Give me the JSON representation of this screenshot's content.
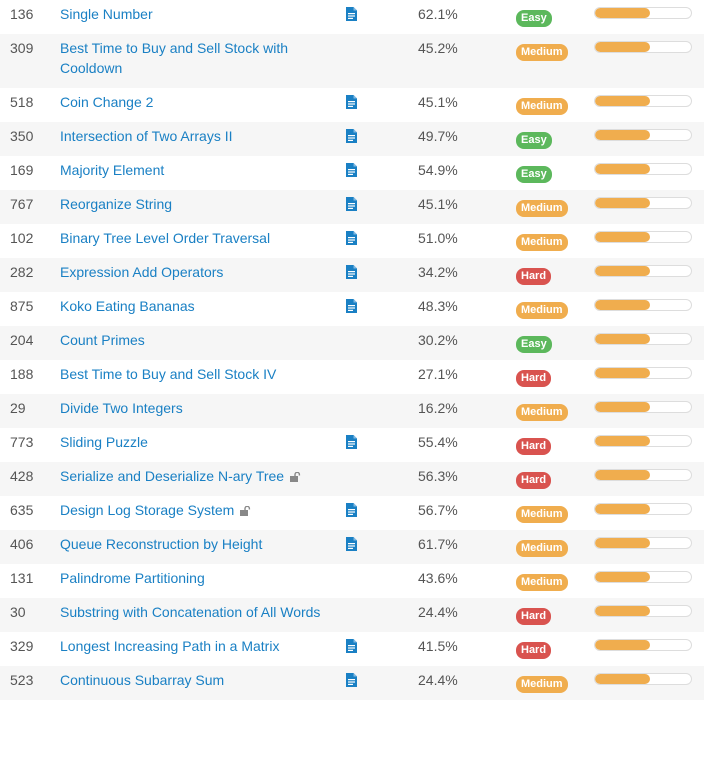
{
  "colors": {
    "easy": "#5cb85c",
    "medium": "#f0ad4e",
    "hard": "#d9534f",
    "link": "#1a80c4",
    "bar": "#f0ad4e"
  },
  "rows": [
    {
      "id": "136",
      "title": "Single Number",
      "solution": true,
      "locked": false,
      "acceptance": "62.1%",
      "difficulty": "Easy",
      "frequency": 0.57,
      "lines": 1
    },
    {
      "id": "309",
      "title": "Best Time to Buy and Sell Stock with Cooldown",
      "solution": false,
      "locked": false,
      "acceptance": "45.2%",
      "difficulty": "Medium",
      "frequency": 0.57,
      "lines": 2
    },
    {
      "id": "518",
      "title": "Coin Change 2",
      "solution": true,
      "locked": false,
      "acceptance": "45.1%",
      "difficulty": "Medium",
      "frequency": 0.57,
      "lines": 1
    },
    {
      "id": "350",
      "title": "Intersection of Two Arrays II",
      "solution": true,
      "locked": false,
      "acceptance": "49.7%",
      "difficulty": "Easy",
      "frequency": 0.57,
      "lines": 1
    },
    {
      "id": "169",
      "title": "Majority Element",
      "solution": true,
      "locked": false,
      "acceptance": "54.9%",
      "difficulty": "Easy",
      "frequency": 0.57,
      "lines": 1
    },
    {
      "id": "767",
      "title": "Reorganize String",
      "solution": true,
      "locked": false,
      "acceptance": "45.1%",
      "difficulty": "Medium",
      "frequency": 0.57,
      "lines": 1
    },
    {
      "id": "102",
      "title": "Binary Tree Level Order Traversal",
      "solution": true,
      "locked": false,
      "acceptance": "51.0%",
      "difficulty": "Medium",
      "frequency": 0.57,
      "lines": 1
    },
    {
      "id": "282",
      "title": "Expression Add Operators",
      "solution": true,
      "locked": false,
      "acceptance": "34.2%",
      "difficulty": "Hard",
      "frequency": 0.57,
      "lines": 1
    },
    {
      "id": "875",
      "title": "Koko Eating Bananas",
      "solution": true,
      "locked": false,
      "acceptance": "48.3%",
      "difficulty": "Medium",
      "frequency": 0.57,
      "lines": 1
    },
    {
      "id": "204",
      "title": "Count Primes",
      "solution": false,
      "locked": false,
      "acceptance": "30.2%",
      "difficulty": "Easy",
      "frequency": 0.57,
      "lines": 1
    },
    {
      "id": "188",
      "title": "Best Time to Buy and Sell Stock IV",
      "solution": false,
      "locked": false,
      "acceptance": "27.1%",
      "difficulty": "Hard",
      "frequency": 0.57,
      "lines": 1
    },
    {
      "id": "29",
      "title": "Divide Two Integers",
      "solution": false,
      "locked": false,
      "acceptance": "16.2%",
      "difficulty": "Medium",
      "frequency": 0.57,
      "lines": 1
    },
    {
      "id": "773",
      "title": "Sliding Puzzle",
      "solution": true,
      "locked": false,
      "acceptance": "55.4%",
      "difficulty": "Hard",
      "frequency": 0.57,
      "lines": 1
    },
    {
      "id": "428",
      "title": "Serialize and Deserialize N-ary Tree",
      "solution": false,
      "locked": true,
      "acceptance": "56.3%",
      "difficulty": "Hard",
      "frequency": 0.57,
      "lines": 1
    },
    {
      "id": "635",
      "title": "Design Log Storage System",
      "solution": true,
      "locked": true,
      "acceptance": "56.7%",
      "difficulty": "Medium",
      "frequency": 0.57,
      "lines": 1
    },
    {
      "id": "406",
      "title": "Queue Reconstruction by Height",
      "solution": true,
      "locked": false,
      "acceptance": "61.7%",
      "difficulty": "Medium",
      "frequency": 0.57,
      "lines": 1
    },
    {
      "id": "131",
      "title": "Palindrome Partitioning",
      "solution": false,
      "locked": false,
      "acceptance": "43.6%",
      "difficulty": "Medium",
      "frequency": 0.57,
      "lines": 1
    },
    {
      "id": "30",
      "title": "Substring with Concatenation of All Words",
      "solution": false,
      "locked": false,
      "acceptance": "24.4%",
      "difficulty": "Hard",
      "frequency": 0.57,
      "lines": 2
    },
    {
      "id": "329",
      "title": "Longest Increasing Path in a Matrix",
      "solution": true,
      "locked": false,
      "acceptance": "41.5%",
      "difficulty": "Hard",
      "frequency": 0.57,
      "lines": 1
    },
    {
      "id": "523",
      "title": "Continuous Subarray Sum",
      "solution": true,
      "locked": false,
      "acceptance": "24.4%",
      "difficulty": "Medium",
      "frequency": 0.57,
      "lines": 1
    }
  ]
}
